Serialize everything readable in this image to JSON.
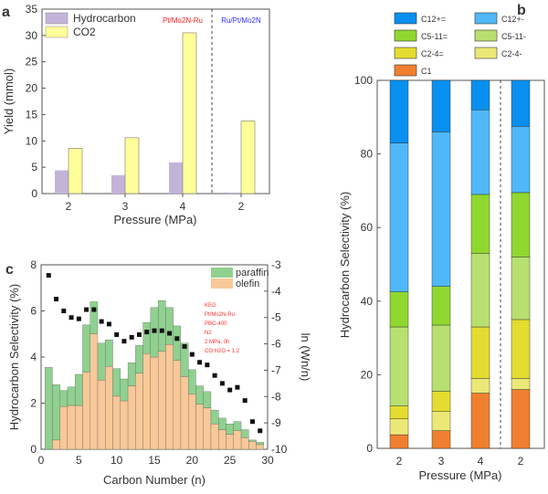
{
  "chart_data": [
    {
      "panel": "a",
      "type": "bar",
      "categories": [
        "2",
        "3",
        "4",
        "2"
      ],
      "xlabel": "Pressure (MPa)",
      "ylabel": "Yield (mmol)",
      "ylim": [
        0,
        35
      ],
      "yticks": [
        0,
        5,
        10,
        15,
        20,
        25,
        30,
        35
      ],
      "series": [
        {
          "name": "Hydrocarbon",
          "color": "#c3b3d8",
          "values": [
            4.4,
            3.5,
            5.9,
            0.2
          ]
        },
        {
          "name": "CO2",
          "color": "#ffff99",
          "values": [
            8.6,
            10.6,
            30.5,
            13.8
          ]
        }
      ],
      "annotations": [
        {
          "text": "Pt/Mo2N-Ru",
          "color": "#ff2020"
        },
        {
          "text": "Ru/Pt/Mo2N",
          "color": "#3030ff"
        }
      ]
    },
    {
      "panel": "b",
      "type": "bar",
      "stacked": true,
      "categories": [
        "2",
        "3",
        "4",
        "2"
      ],
      "xlabel": "Pressure (MPa)",
      "ylabel": "Hydrocarbon Selectivity (%)",
      "ylim": [
        0,
        100
      ],
      "yticks": [
        0,
        20,
        40,
        60,
        80,
        100
      ],
      "series": [
        {
          "name": "C1",
          "color": "#f08030",
          "values": [
            3.7,
            4.8,
            15,
            16
          ]
        },
        {
          "name": "C2-4-",
          "color": "#ece878",
          "values": [
            4.3,
            5.2,
            4,
            3
          ]
        },
        {
          "name": "C2-4=",
          "color": "#e4dc30",
          "values": [
            3.5,
            5.5,
            14,
            16
          ]
        },
        {
          "name": "C5-11-",
          "color": "#b8e070",
          "values": [
            21.5,
            18,
            20,
            17
          ]
        },
        {
          "name": "C5-11=",
          "color": "#90d830",
          "values": [
            9.5,
            10.5,
            16,
            17.5
          ]
        },
        {
          "name": "C12+-",
          "color": "#50b8f8",
          "values": [
            40.5,
            42,
            23,
            18
          ]
        },
        {
          "name": "C12+=",
          "color": "#0890f0",
          "values": [
            17,
            14,
            8,
            12.5
          ]
        }
      ],
      "legend_order": [
        "C12+=",
        "C12+-",
        "C5-11=",
        "C5-11-",
        "C2-4=",
        "C2-4-",
        "C1"
      ]
    },
    {
      "panel": "c",
      "type": "bar",
      "stacked": true,
      "xlabel": "Carbon Number (n)",
      "ylabel": "Hydrocarbon Selectivity (%)",
      "y2label": "ln (Wn/n)",
      "xlim": [
        0,
        30
      ],
      "ylim": [
        0,
        8
      ],
      "y2lim": [
        -10,
        -3
      ],
      "xticks": [
        0,
        5,
        10,
        15,
        20,
        25,
        30
      ],
      "yticks": [
        0,
        2,
        4,
        6,
        8
      ],
      "y2ticks": [
        -3,
        -4,
        -5,
        -6,
        -7,
        -8,
        -9,
        -10
      ],
      "x": [
        1,
        2,
        3,
        4,
        5,
        6,
        7,
        8,
        9,
        10,
        11,
        12,
        13,
        14,
        15,
        16,
        17,
        18,
        19,
        20,
        21,
        22,
        23,
        24,
        25,
        26,
        27,
        28,
        29
      ],
      "series": [
        {
          "name": "olefin",
          "color": "#f8c898",
          "values": [
            0,
            0.4,
            1.85,
            1.9,
            1.9,
            3.35,
            5.0,
            3.0,
            3.6,
            2.3,
            2.1,
            2.75,
            3.3,
            4.15,
            4.0,
            4.25,
            4.55,
            3.85,
            3.15,
            2.4,
            1.95,
            1.8,
            1.1,
            0.85,
            0.65,
            0.8,
            0.5,
            0.35,
            0.2
          ]
        },
        {
          "name": "paraffin",
          "color": "#90d090",
          "values": [
            3.55,
            2.4,
            0.7,
            0.8,
            1.35,
            2.05,
            1.4,
            1.6,
            1.15,
            1.2,
            0.95,
            1.0,
            1.2,
            1.35,
            2.15,
            2.2,
            1.6,
            1.5,
            1.45,
            1.05,
            0.8,
            0.7,
            0.6,
            0.5,
            0.45,
            0.4,
            0.35,
            0.05,
            0.1
          ]
        },
        {
          "name": "ln(Wn/n)",
          "type": "scatter",
          "values": [
            -3.4,
            -4.3,
            -4.75,
            -5.0,
            -5.05,
            -4.7,
            -4.7,
            -5.15,
            -5.25,
            -5.65,
            -5.9,
            -5.75,
            -5.65,
            -5.55,
            -5.5,
            -5.5,
            -5.6,
            -5.8,
            -6.1,
            -6.4,
            -6.7,
            -6.8,
            -7.2,
            -7.5,
            -7.75,
            -7.65,
            -8.15,
            -8.95,
            -9.3
          ]
        }
      ],
      "annotations": [
        "KEG",
        "Pt/Mo2N-Ru",
        "PBC-400",
        "N2",
        "2 MPa, 0h",
        "CO:H2O = 1:2"
      ]
    }
  ],
  "labels": {
    "a": "a",
    "b": "b",
    "c": "c"
  }
}
